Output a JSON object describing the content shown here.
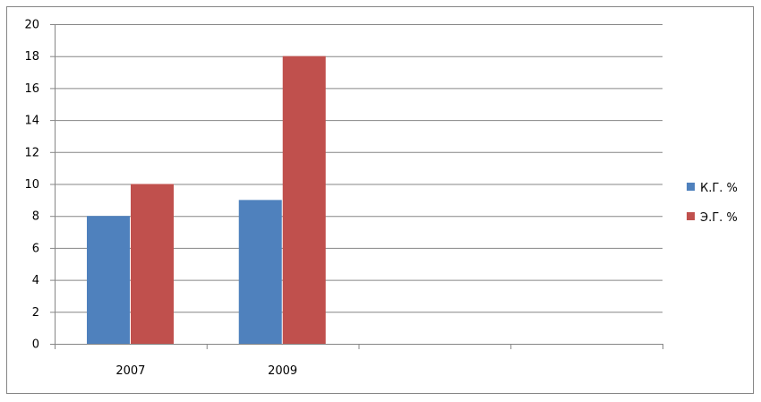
{
  "chart_data": {
    "type": "bar",
    "title": "",
    "xlabel": "",
    "ylabel": "",
    "categories": [
      "2007",
      "2009",
      "",
      ""
    ],
    "series": [
      {
        "name": "К.Г. %",
        "values": [
          8,
          9,
          null,
          null
        ],
        "color": "#4F81BD"
      },
      {
        "name": "Э.Г. %",
        "values": [
          10,
          18,
          null,
          null
        ],
        "color": "#C0504D"
      }
    ],
    "ylim": [
      0,
      20
    ],
    "yticks": [
      0,
      2,
      4,
      6,
      8,
      10,
      12,
      14,
      16,
      18,
      20
    ],
    "grid": true,
    "legend_position": "right"
  }
}
